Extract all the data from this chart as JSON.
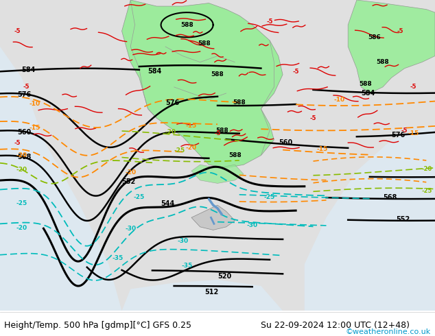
{
  "title_left": "Height/Temp. 500 hPa [gdmp][°C] GFS 0.25",
  "title_right": "Su 22-09-2024 12:00 UTC (12+48)",
  "credit": "©weatheronline.co.uk",
  "credit_color": "#0099cc",
  "bg_color": "#ffffff",
  "land_color": "#d8d8d8",
  "ocean_color": "#e8e8e8",
  "green_color": "#90ee90",
  "black_contour": "#000000",
  "red_contour": "#dd0000",
  "orange_contour": "#ff8800",
  "yellow_green_contour": "#88bb00",
  "cyan_contour": "#00bbbb",
  "blue_contour": "#4488ff",
  "footer_color": "#000000",
  "footer_fontsize": 9.0,
  "credit_fontsize": 8.0,
  "figsize": [
    6.34,
    4.9
  ],
  "dpi": 100
}
